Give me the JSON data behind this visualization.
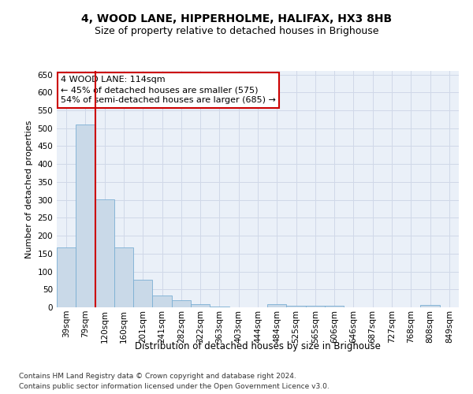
{
  "title1": "4, WOOD LANE, HIPPERHOLME, HALIFAX, HX3 8HB",
  "title2": "Size of property relative to detached houses in Brighouse",
  "xlabel": "Distribution of detached houses by size in Brighouse",
  "ylabel": "Number of detached properties",
  "bar_labels": [
    "39sqm",
    "79sqm",
    "120sqm",
    "160sqm",
    "201sqm",
    "241sqm",
    "282sqm",
    "322sqm",
    "363sqm",
    "403sqm",
    "444sqm",
    "484sqm",
    "525sqm",
    "565sqm",
    "606sqm",
    "646sqm",
    "687sqm",
    "727sqm",
    "768sqm",
    "808sqm",
    "849sqm"
  ],
  "bar_values": [
    168,
    510,
    302,
    168,
    78,
    32,
    20,
    8,
    2,
    0,
    0,
    8,
    5,
    5,
    5,
    0,
    0,
    0,
    0,
    7,
    0
  ],
  "bar_color": "#c9d9e8",
  "bar_edge_color": "#7bafd4",
  "vline_color": "#cc0000",
  "annotation_text": "4 WOOD LANE: 114sqm\n← 45% of detached houses are smaller (575)\n54% of semi-detached houses are larger (685) →",
  "annotation_box_color": "#ffffff",
  "annotation_box_edge_color": "#cc0000",
  "ylim": [
    0,
    660
  ],
  "yticks": [
    0,
    50,
    100,
    150,
    200,
    250,
    300,
    350,
    400,
    450,
    500,
    550,
    600,
    650
  ],
  "grid_color": "#d0d8e8",
  "bg_color": "#eaf0f8",
  "footer1": "Contains HM Land Registry data © Crown copyright and database right 2024.",
  "footer2": "Contains public sector information licensed under the Open Government Licence v3.0.",
  "title1_fontsize": 10,
  "title2_fontsize": 9,
  "xlabel_fontsize": 8.5,
  "ylabel_fontsize": 8,
  "tick_fontsize": 7.5,
  "annotation_fontsize": 8,
  "footer_fontsize": 6.5
}
